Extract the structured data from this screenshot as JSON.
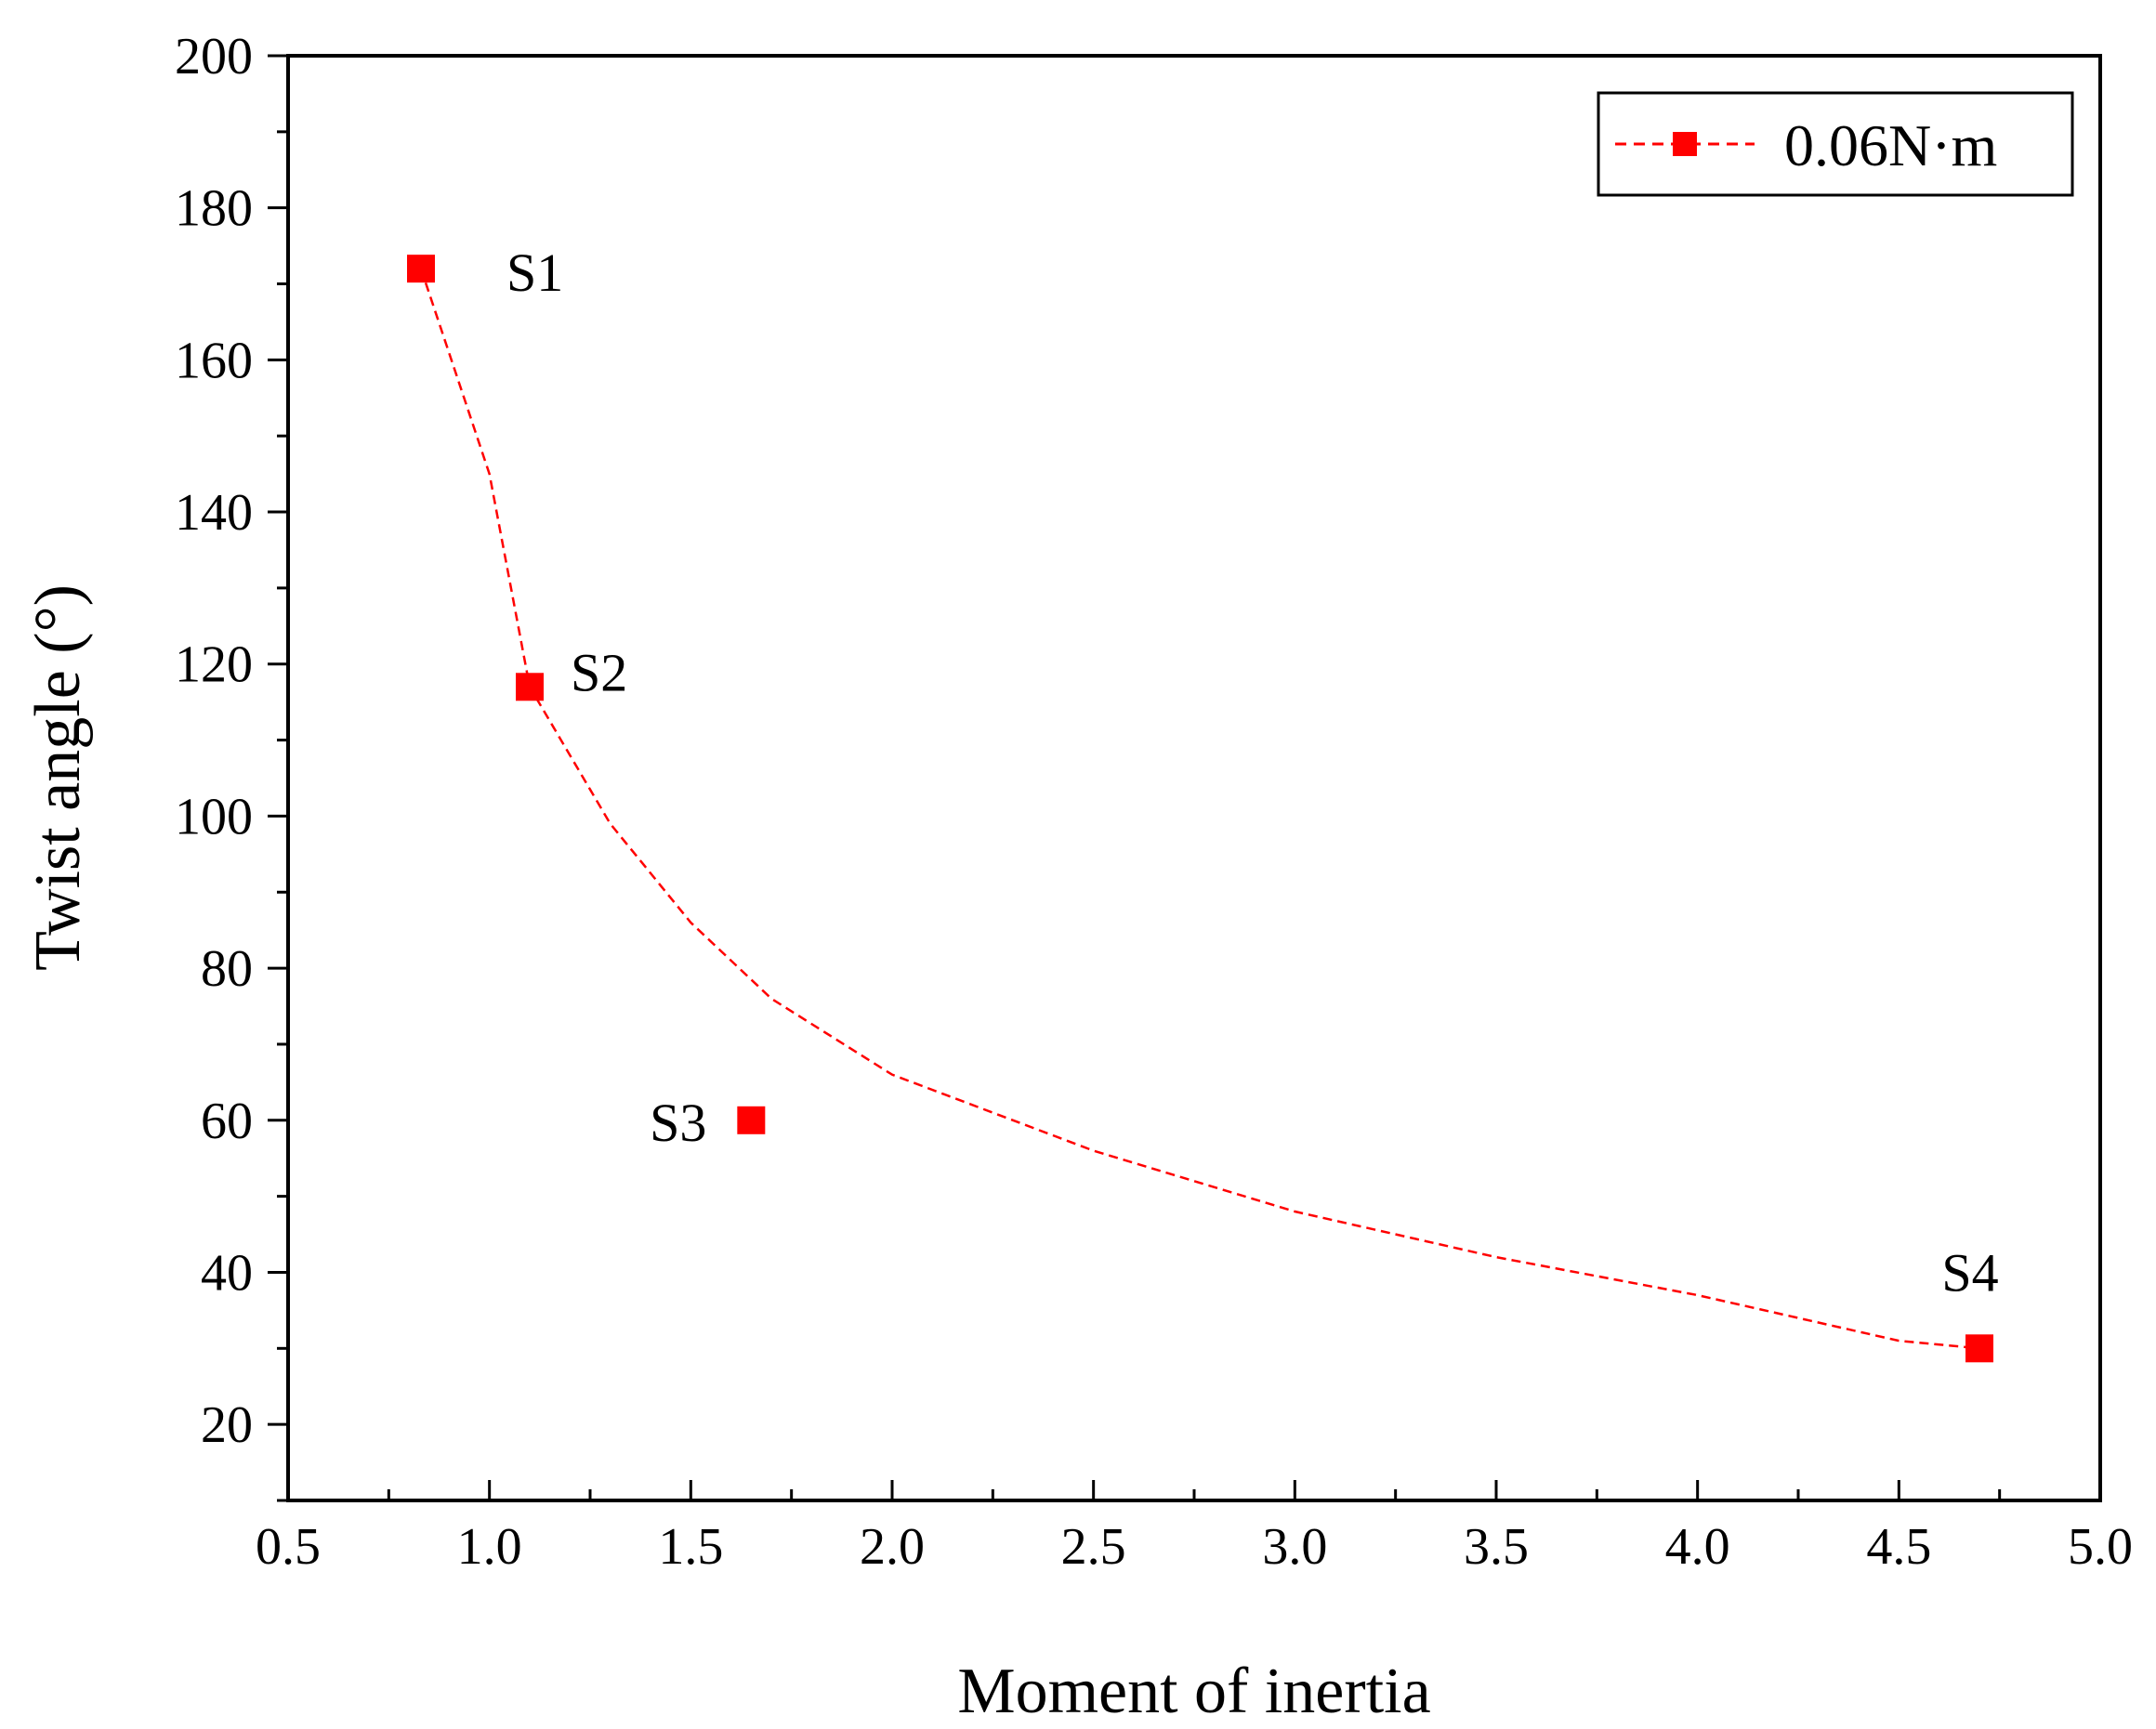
{
  "chart_data": {
    "type": "scatter",
    "title": "",
    "xlabel": "Moment of inertia",
    "ylabel": "Twist angle (°)",
    "xlim": [
      0.5,
      5.0
    ],
    "ylim": [
      10,
      200
    ],
    "x_ticks": [
      "0.5",
      "1.0",
      "1.5",
      "2.0",
      "2.5",
      "3.0",
      "3.5",
      "4.0",
      "4.5",
      "5.0"
    ],
    "y_ticks": [
      "20",
      "40",
      "60",
      "80",
      "100",
      "120",
      "140",
      "160",
      "180",
      "200"
    ],
    "series": [
      {
        "name": "0.06N·m",
        "color": "#ff0000",
        "marker": "square",
        "points": [
          {
            "label": "S1",
            "x": 0.83,
            "y": 172
          },
          {
            "label": "S2",
            "x": 1.1,
            "y": 117
          },
          {
            "label": "S3",
            "x": 1.65,
            "y": 60
          },
          {
            "label": "S4",
            "x": 4.7,
            "y": 30
          }
        ],
        "fit": {
          "style": "dashed",
          "points": [
            [
              0.83,
              172
            ],
            [
              1.0,
              145
            ],
            [
              1.1,
              117
            ],
            [
              1.3,
              99
            ],
            [
              1.5,
              86
            ],
            [
              1.7,
              76
            ],
            [
              2.0,
              66
            ],
            [
              2.5,
              56
            ],
            [
              3.0,
              48
            ],
            [
              3.5,
              42
            ],
            [
              4.0,
              37
            ],
            [
              4.5,
              31
            ],
            [
              4.7,
              30
            ]
          ]
        }
      }
    ],
    "legend": {
      "position": "top-right",
      "entries": [
        "0.06N·m"
      ]
    },
    "grid": false
  }
}
